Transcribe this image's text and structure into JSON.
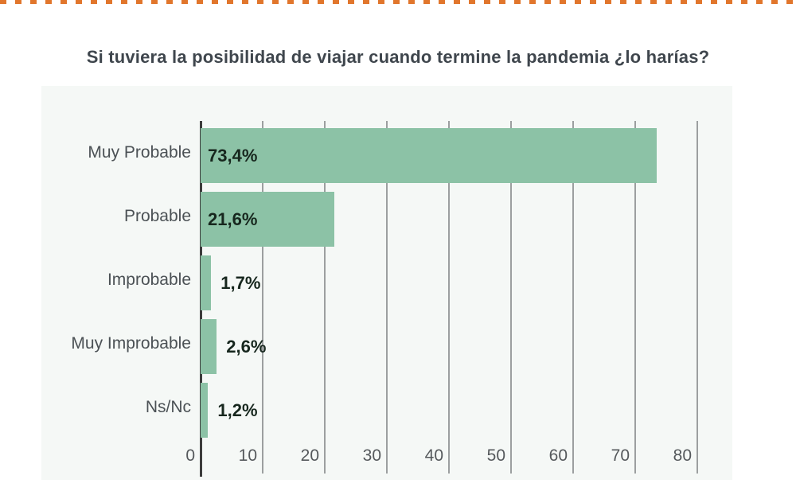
{
  "colors": {
    "dash_orange": "#e1762c",
    "bar_fill": "#8cc2a6",
    "panel_bg": "#f5f8f6",
    "gridline": "#9c9fa0",
    "axis": "#3c3c3c",
    "title_text": "#3f464d",
    "category_text": "#4b5155",
    "value_text": "#17271e",
    "tick_text": "#55595c"
  },
  "chart_data": {
    "type": "bar",
    "orientation": "horizontal",
    "title": "Si tuviera la posibilidad de viajar cuando termine la pandemia ¿lo harías?",
    "categories": [
      "Muy Probable",
      "Probable",
      "Improbable",
      "Muy Improbable",
      "Ns/Nc"
    ],
    "values": [
      73.4,
      21.6,
      1.7,
      2.6,
      1.2
    ],
    "value_labels": [
      "73,4%",
      "21,6%",
      "1,7%",
      "2,6%",
      "1,2%"
    ],
    "xlabel": "",
    "ylabel": "",
    "xlim": [
      0,
      80
    ],
    "x_ticks": [
      0,
      10,
      20,
      30,
      40,
      50,
      60,
      70,
      80
    ],
    "grid": true,
    "legend": false
  }
}
